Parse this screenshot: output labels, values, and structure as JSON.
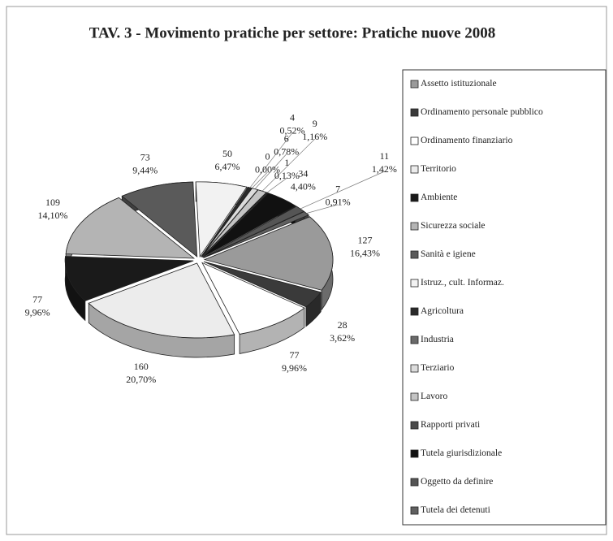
{
  "chart_data": {
    "type": "pie",
    "title": "TAV. 3 - Movimento pratiche per settore: Pratiche nuove 2008",
    "categories": [
      "Assetto istituzionale",
      "Ordinamento personale pubblico",
      "Ordinamento finanziario",
      "Territorio",
      "Ambiente",
      "Sicurezza sociale",
      "Sanità e igiene",
      "Istruz., cult. Informaz.",
      "Agricoltura",
      "Industria",
      "Terziario",
      "Lavoro",
      "Rapporti privati",
      "Tutela giurisdizionale",
      "Oggetto da definire",
      "Tutela dei detenuti"
    ],
    "values": [
      127,
      28,
      77,
      160,
      77,
      109,
      73,
      50,
      4,
      0,
      6,
      9,
      1,
      34,
      11,
      7
    ],
    "percentages": [
      16.43,
      3.62,
      9.96,
      20.7,
      9.96,
      14.1,
      9.44,
      6.47,
      0.52,
      0.0,
      0.78,
      1.16,
      0.13,
      4.4,
      1.42,
      0.91
    ],
    "percentage_labels": [
      "16,43%",
      "3,62%",
      "9,96%",
      "20,70%",
      "9,96%",
      "14,10%",
      "9,44%",
      "6,47%",
      "0,52%",
      "0,00%",
      "0,78%",
      "1,16%",
      "0,13%",
      "4,40%",
      "1,42%",
      "0,91%"
    ],
    "colors": [
      "#9a9a9a",
      "#3a3a3a",
      "#ffffff",
      "#ececec",
      "#1a1a1a",
      "#b4b4b4",
      "#5a5a5a",
      "#f2f2f2",
      "#2a2a2a",
      "#6a6a6a",
      "#dcdcdc",
      "#c4c4c4",
      "#4a4a4a",
      "#111111",
      "#555555",
      "#606060"
    ],
    "legend": "right"
  }
}
